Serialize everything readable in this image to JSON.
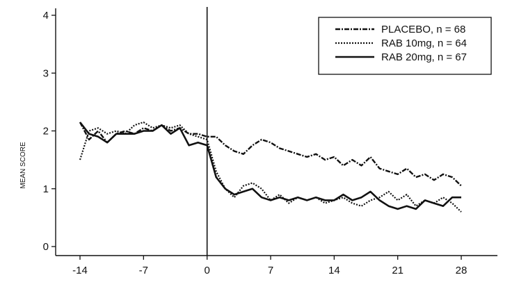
{
  "chart_data": {
    "type": "line",
    "title": "",
    "xlabel": "",
    "ylabel": "MEAN SCORE",
    "xlim": [
      -14,
      28
    ],
    "ylim": [
      0,
      4
    ],
    "xticks": [
      -14,
      -7,
      0,
      7,
      14,
      21,
      28
    ],
    "yticks": [
      0,
      1,
      2,
      3,
      4
    ],
    "xtick_labels": [
      "-14",
      "-7",
      "0",
      "7",
      "14",
      "21",
      "28"
    ],
    "ytick_labels": [
      "0",
      "1",
      "2",
      "3",
      "4"
    ],
    "reference_line_x": 0,
    "grid": false,
    "legend_position": "top-right",
    "series": [
      {
        "name": "PLACEBO, n = 68",
        "style": "dash-dot",
        "x": [
          -14,
          -13,
          -12,
          -11,
          -10,
          -9,
          -8,
          -7,
          -6,
          -5,
          -4,
          -3,
          -2,
          -1,
          0,
          1,
          2,
          3,
          4,
          5,
          6,
          7,
          8,
          9,
          10,
          11,
          12,
          13,
          14,
          15,
          16,
          17,
          18,
          19,
          20,
          21,
          22,
          23,
          24,
          25,
          26,
          27,
          28
        ],
        "values": [
          2.15,
          1.85,
          2.0,
          1.8,
          1.95,
          2.0,
          1.95,
          2.05,
          2.0,
          2.1,
          2.0,
          2.05,
          1.95,
          1.95,
          1.9,
          1.9,
          1.75,
          1.65,
          1.6,
          1.75,
          1.85,
          1.8,
          1.7,
          1.65,
          1.6,
          1.55,
          1.6,
          1.5,
          1.55,
          1.4,
          1.5,
          1.4,
          1.55,
          1.35,
          1.3,
          1.25,
          1.35,
          1.2,
          1.25,
          1.15,
          1.25,
          1.2,
          1.05
        ]
      },
      {
        "name": "RAB 10mg, n = 64",
        "style": "dotted",
        "x": [
          -14,
          -13,
          -12,
          -11,
          -10,
          -9,
          -8,
          -7,
          -6,
          -5,
          -4,
          -3,
          -2,
          -1,
          0,
          1,
          2,
          3,
          4,
          5,
          6,
          7,
          8,
          9,
          10,
          11,
          12,
          13,
          14,
          15,
          16,
          17,
          18,
          19,
          20,
          21,
          22,
          23,
          24,
          25,
          26,
          27,
          28
        ],
        "values": [
          1.5,
          2.0,
          2.05,
          1.95,
          2.0,
          1.95,
          2.1,
          2.15,
          2.05,
          2.1,
          2.05,
          2.1,
          1.95,
          1.9,
          1.85,
          1.3,
          1.0,
          0.85,
          1.05,
          1.1,
          1.0,
          0.8,
          0.9,
          0.75,
          0.85,
          0.8,
          0.85,
          0.75,
          0.8,
          0.85,
          0.75,
          0.7,
          0.8,
          0.85,
          0.95,
          0.8,
          0.9,
          0.7,
          0.8,
          0.75,
          0.85,
          0.75,
          0.6
        ]
      },
      {
        "name": "RAB 20mg, n = 67",
        "style": "solid",
        "x": [
          -14,
          -13,
          -12,
          -11,
          -10,
          -9,
          -8,
          -7,
          -6,
          -5,
          -4,
          -3,
          -2,
          -1,
          0,
          1,
          2,
          3,
          4,
          5,
          6,
          7,
          8,
          9,
          10,
          11,
          12,
          13,
          14,
          15,
          16,
          17,
          18,
          19,
          20,
          21,
          22,
          23,
          24,
          25,
          26,
          27,
          28
        ],
        "values": [
          2.15,
          1.95,
          1.9,
          1.8,
          1.95,
          1.95,
          1.95,
          2.0,
          2.0,
          2.1,
          1.95,
          2.05,
          1.75,
          1.8,
          1.75,
          1.2,
          1.0,
          0.9,
          0.95,
          1.0,
          0.85,
          0.8,
          0.85,
          0.8,
          0.85,
          0.8,
          0.85,
          0.8,
          0.8,
          0.9,
          0.8,
          0.85,
          0.95,
          0.8,
          0.7,
          0.65,
          0.7,
          0.65,
          0.8,
          0.75,
          0.7,
          0.85,
          0.85
        ]
      }
    ]
  }
}
